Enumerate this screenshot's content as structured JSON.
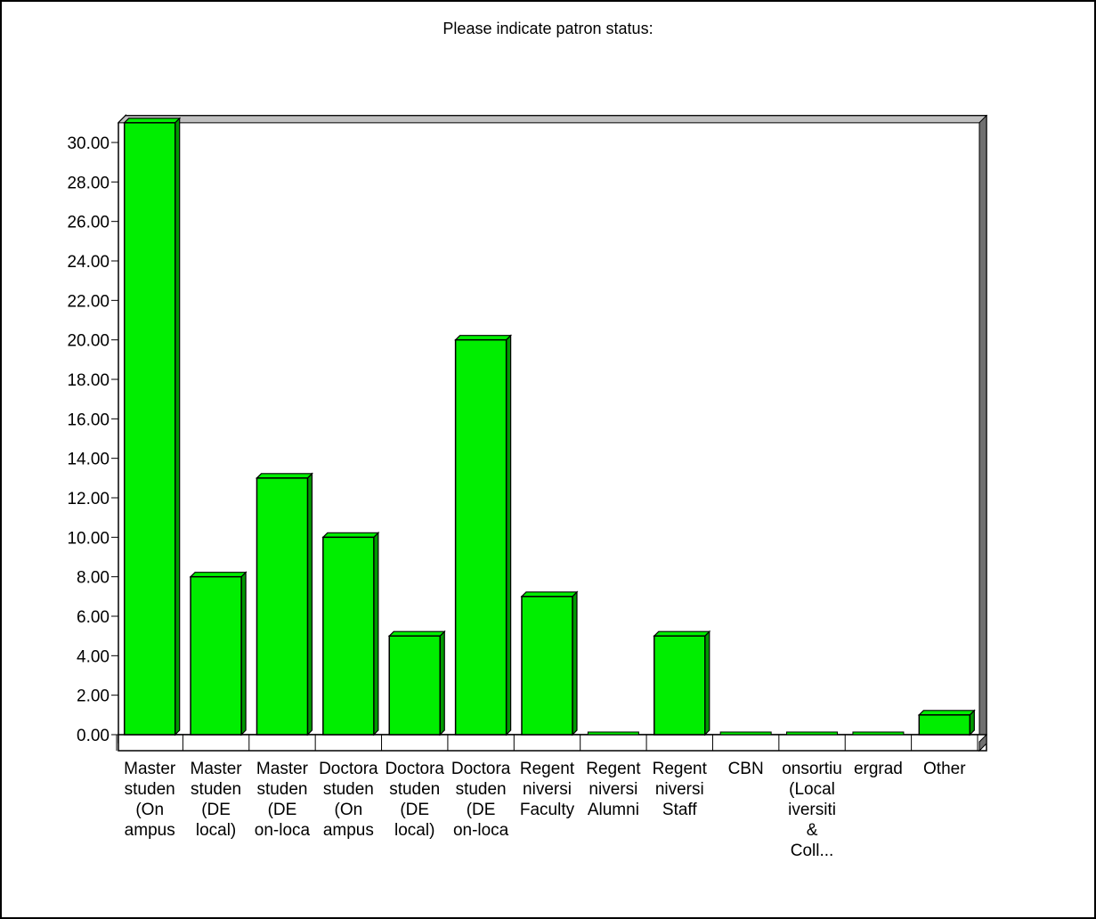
{
  "chart_data": {
    "type": "bar",
    "title": "Please indicate patron status:",
    "xlabel": "",
    "ylabel": "",
    "ylim": [
      0,
      30
    ],
    "yticks": [
      "0.00",
      "2.00",
      "4.00",
      "6.00",
      "8.00",
      "10.00",
      "12.00",
      "14.00",
      "16.00",
      "18.00",
      "20.00",
      "22.00",
      "24.00",
      "26.00",
      "28.00",
      "30.00"
    ],
    "categories": [
      [
        "Master",
        "studen",
        "(On",
        "ampus"
      ],
      [
        "Master",
        "studen",
        "(DE",
        "local)"
      ],
      [
        "Master",
        "studen",
        "(DE",
        "on-loca"
      ],
      [
        "Doctora",
        "studen",
        "(On",
        "ampus"
      ],
      [
        "Doctora",
        "studen",
        "(DE",
        "local)"
      ],
      [
        "Doctora",
        "studen",
        "(DE",
        "on-loca"
      ],
      [
        "Regent",
        "niversi",
        "Faculty"
      ],
      [
        "Regent",
        "niversi",
        "Alumni"
      ],
      [
        "Regent",
        "niversi",
        "Staff"
      ],
      [
        "CBN"
      ],
      [
        "onsortiu",
        "(Local",
        "iversiti",
        "&",
        "Coll..."
      ],
      [
        "ergrad"
      ],
      [
        "Other"
      ]
    ],
    "values": [
      31,
      8,
      13,
      10,
      5,
      20,
      7,
      0,
      5,
      0,
      0,
      0,
      1
    ],
    "colors": {
      "bar": "#00ee00",
      "bar_side": "#009900",
      "wall_top": "#c0c0c0",
      "wall_side": "#707070",
      "axis": "#000000"
    }
  }
}
